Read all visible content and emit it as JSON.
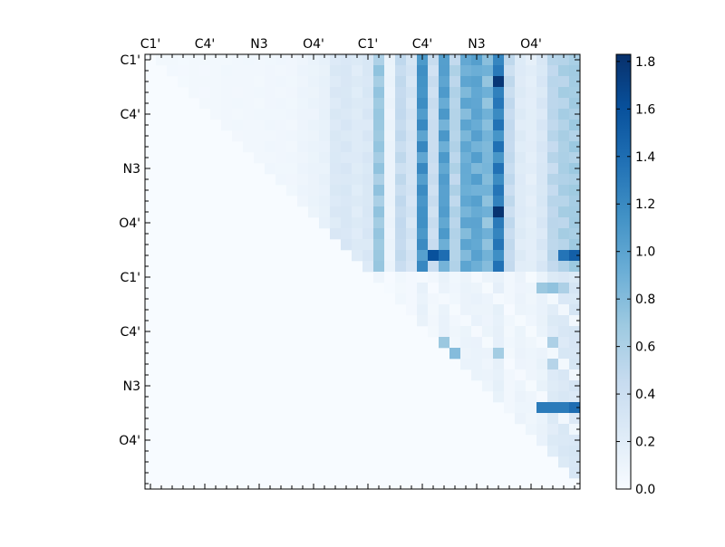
{
  "chart_data": {
    "type": "heatmap",
    "title": "",
    "xlabel": "",
    "ylabel": "",
    "n": 40,
    "x_ticks": [
      {
        "index": 0,
        "label": "C1'"
      },
      {
        "index": 5,
        "label": "C4'"
      },
      {
        "index": 10,
        "label": "N3"
      },
      {
        "index": 15,
        "label": "O4'"
      },
      {
        "index": 20,
        "label": "C1'"
      },
      {
        "index": 25,
        "label": "C4'"
      },
      {
        "index": 30,
        "label": "N3"
      },
      {
        "index": 35,
        "label": "O4'"
      }
    ],
    "y_ticks": [
      {
        "index": 0,
        "label": "C1'"
      },
      {
        "index": 5,
        "label": "C4'"
      },
      {
        "index": 10,
        "label": "N3"
      },
      {
        "index": 15,
        "label": "O4'"
      },
      {
        "index": 20,
        "label": "C1'"
      },
      {
        "index": 25,
        "label": "C4'"
      },
      {
        "index": 30,
        "label": "N3"
      },
      {
        "index": 35,
        "label": "O4'"
      }
    ],
    "colorbar": {
      "min": 0.0,
      "max": 1.83,
      "colormap": "Blues",
      "ticks": [
        0.0,
        0.2,
        0.4,
        0.6,
        0.8,
        1.0,
        1.2,
        1.4,
        1.6,
        1.8
      ],
      "tick_labels": [
        "0.0",
        "0.2",
        "0.4",
        "0.6",
        "0.8",
        "1.0",
        "1.2",
        "1.4",
        "1.6",
        "1.8"
      ]
    },
    "column_base": [
      0,
      0.05,
      0.05,
      0.04,
      0.05,
      0.05,
      0.05,
      0.06,
      0.06,
      0.06,
      0.06,
      0.07,
      0.07,
      0.07,
      0.1,
      0.12,
      0.15,
      0.28,
      0.3,
      0.25,
      0.3,
      0.75,
      0.12,
      0.5,
      0.35,
      1.22,
      0.45,
      1.1,
      0.6,
      1.0,
      1.05,
      0.9,
      1.38,
      0.5,
      0.25,
      0.2,
      0.3,
      0.55,
      0.65,
      0.7
    ],
    "strong_cells": [
      {
        "r": 2,
        "c": 32,
        "v": 1.78
      },
      {
        "r": 14,
        "c": 32,
        "v": 1.8
      },
      {
        "r": 18,
        "c": 26,
        "v": 1.6
      },
      {
        "r": 18,
        "c": 27,
        "v": 1.4
      },
      {
        "r": 18,
        "c": 39,
        "v": 1.5
      },
      {
        "r": 18,
        "c": 38,
        "v": 1.35
      },
      {
        "r": 32,
        "c": 36,
        "v": 1.3
      },
      {
        "r": 32,
        "c": 37,
        "v": 1.3
      },
      {
        "r": 32,
        "c": 38,
        "v": 1.3
      },
      {
        "r": 32,
        "c": 39,
        "v": 1.4
      },
      {
        "r": 21,
        "c": 36,
        "v": 0.7
      },
      {
        "r": 21,
        "c": 37,
        "v": 0.75
      },
      {
        "r": 21,
        "c": 38,
        "v": 0.6
      },
      {
        "r": 26,
        "c": 27,
        "v": 0.7
      },
      {
        "r": 27,
        "c": 28,
        "v": 0.8
      },
      {
        "r": 27,
        "c": 32,
        "v": 0.65
      },
      {
        "r": 26,
        "c": 37,
        "v": 0.6
      },
      {
        "r": 28,
        "c": 37,
        "v": 0.55
      }
    ]
  }
}
